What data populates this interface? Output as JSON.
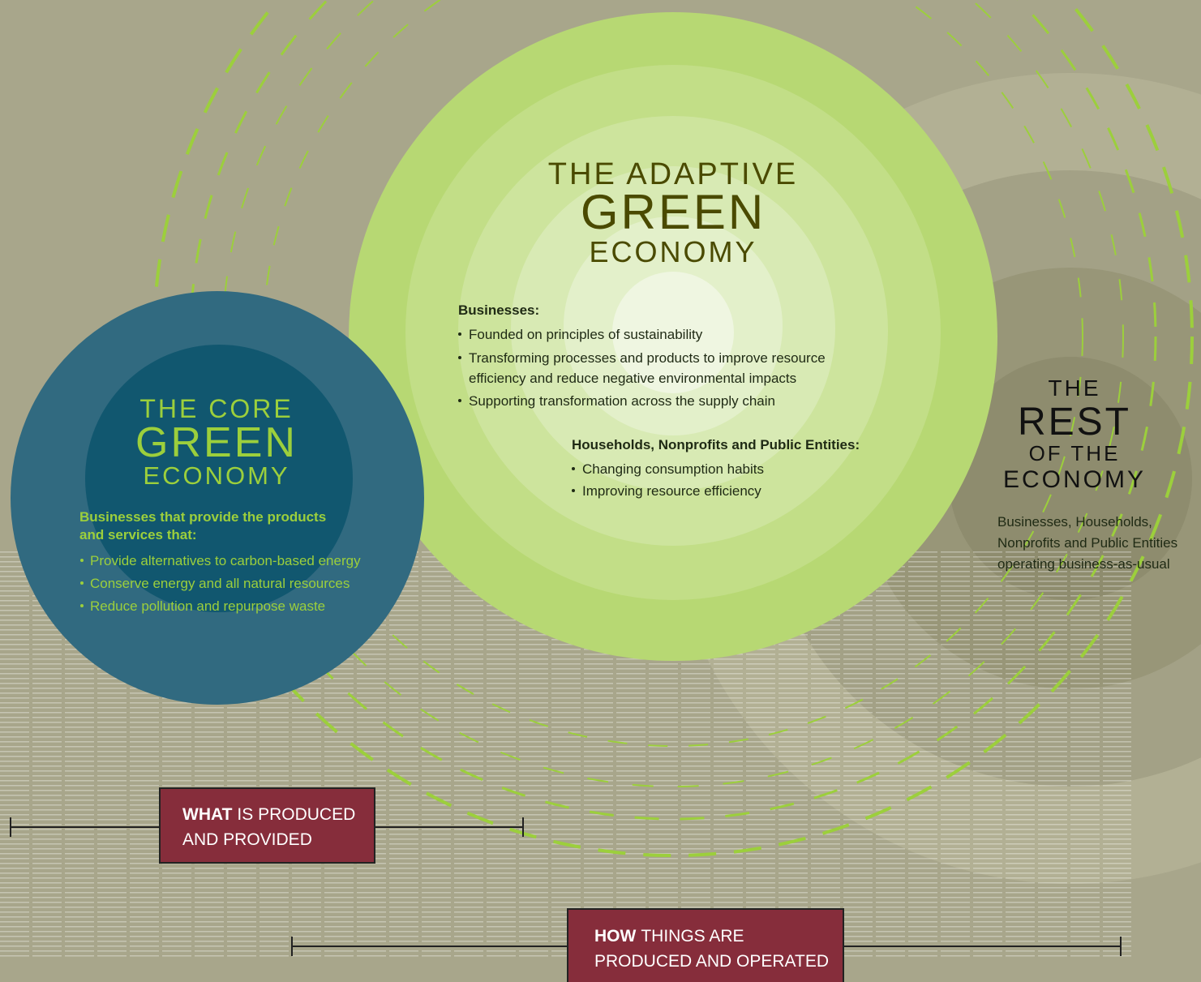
{
  "core": {
    "title": [
      "THE CORE",
      "GREEN",
      "ECONOMY"
    ],
    "intro": [
      "Businesses that provide the products",
      "and services that:"
    ],
    "bullets": [
      "Provide alternatives to carbon-based energy",
      "Conserve energy and all natural resources",
      "Reduce pollution and repurpose waste"
    ]
  },
  "adaptive": {
    "title": [
      "THE ADAPTIVE",
      "GREEN",
      "ECONOMY"
    ],
    "businesses_heading": "Businesses:",
    "businesses": [
      [
        "Founded on principles of sustainability"
      ],
      [
        "Transforming processes and products to improve resource",
        "efficiency and reduce negative environmental impacts"
      ],
      [
        "Supporting transformation across the supply chain"
      ]
    ],
    "households_heading": "Households, Nonprofits and Public Entities:",
    "households": [
      "Changing consumption habits",
      "Improving resource efficiency"
    ]
  },
  "rest": {
    "title": [
      "THE",
      "REST",
      "OF THE",
      "ECONOMY"
    ],
    "description": [
      "Businesses, Households,",
      "Nonprofits and Public Entities",
      "operating business-as-usual"
    ]
  },
  "labels": [
    {
      "bold": "WHAT",
      "lines": [
        "IS PRODUCED",
        "AND PROVIDED"
      ]
    },
    {
      "bold": "HOW",
      "lines": [
        "THINGS ARE",
        "PRODUCED AND OPERATED"
      ]
    }
  ]
}
